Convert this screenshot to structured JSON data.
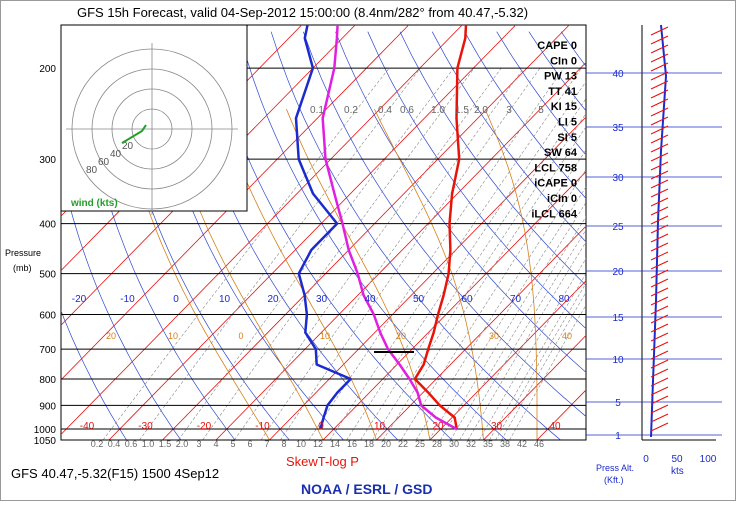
{
  "chart_data": {
    "type": "line",
    "title": "GFS 15h Forecast, valid 04-Sep-2012 15:00:00 (8.4nm/282° from 40.47,-5.32)",
    "footer_left": "GFS 40.47,-5.32(F15) 1500 4Sep12",
    "xlabel": "SkewT-log P",
    "ylabel": "Pressure\n(mb)",
    "credit": "NOAA / ESRL / GSD",
    "pressure_ticks": [
      200,
      300,
      400,
      500,
      600,
      700,
      800,
      900,
      1000,
      1050
    ],
    "temperature_ticks": [
      "-40",
      "-30",
      "-20",
      "-10",
      "0",
      "10",
      "20",
      "30",
      "40"
    ],
    "upper_temp_ticks": [
      "-20",
      "-10",
      "0",
      "10",
      "20",
      "30",
      "40",
      "50",
      "60",
      "70",
      "80"
    ],
    "lower_temp_ticks": [
      "20",
      "10",
      "0",
      "10",
      "20",
      "30",
      "40"
    ],
    "mixing_ratio_labels": [
      "0.1",
      "0.2",
      "0.4",
      "0.6",
      "1.0",
      "1.5",
      "2.0",
      "3",
      "5"
    ],
    "mixing_ratio_lower": [
      "0.2",
      "0.4",
      "0.6",
      "1.0",
      "1.5",
      "2.0",
      "3",
      "4",
      "5",
      "6",
      "7",
      "8",
      "10",
      "12",
      "14",
      "16",
      "18",
      "20",
      "22",
      "25",
      "28",
      "30",
      "32",
      "35",
      "38",
      "42",
      "46"
    ],
    "indices": [
      {
        "label": "CAPE",
        "value": "0"
      },
      {
        "label": "CIn",
        "value": "0"
      },
      {
        "label": "PW",
        "value": "13"
      },
      {
        "label": "TT",
        "value": "41"
      },
      {
        "label": "KI",
        "value": "15"
      },
      {
        "label": "LI",
        "value": "5"
      },
      {
        "label": "SI",
        "value": "5"
      },
      {
        "label": "SW",
        "value": "64"
      },
      {
        "label": "LCL",
        "value": "758"
      },
      {
        "label": "iCAPE",
        "value": "0"
      },
      {
        "label": "iCIn",
        "value": "0"
      },
      {
        "label": "iLCL",
        "value": "664"
      }
    ],
    "hodograph": {
      "rings": [
        "20",
        "40",
        "60",
        "80"
      ],
      "label": "wind (kts)"
    },
    "height_axis": {
      "ticks": [
        "1",
        "5",
        "10",
        "15",
        "20",
        "25",
        "30",
        "35",
        "40"
      ],
      "label": "Press Alt.\n(Kft.)"
    },
    "wind_axis": {
      "ticks": [
        "0",
        "50",
        "100"
      ],
      "unit": "kts"
    },
    "series": [
      {
        "name": "temperature",
        "color": "#e8140a",
        "p": [
          1000,
          950,
          900,
          850,
          800,
          750,
          700,
          650,
          600,
          550,
          500,
          450,
          400,
          350,
          300,
          250,
          200,
          175,
          150
        ],
        "t": [
          23,
          20.5,
          15.5,
          11,
          6,
          5,
          3,
          1,
          -1.5,
          -4,
          -7,
          -11,
          -16,
          -21,
          -26,
          -34,
          -43,
          -47,
          -53
        ]
      },
      {
        "name": "dewpoint",
        "color": "#1b2bcc",
        "p": [
          1000,
          950,
          900,
          850,
          800,
          750,
          700,
          650,
          600,
          550,
          500,
          450,
          400,
          350,
          300,
          250,
          200,
          175,
          150
        ],
        "t": [
          -2.5,
          -4,
          -5.5,
          -6,
          -6,
          -15,
          -18,
          -23,
          -26,
          -30,
          -35,
          -37,
          -37,
          -47,
          -56,
          -64,
          -70,
          -77,
          -82
        ]
      },
      {
        "name": "parcel",
        "color": "#e020e0",
        "p": [
          1000,
          950,
          900,
          850,
          800,
          750,
          700,
          650,
          600,
          550,
          500,
          450,
          400,
          350,
          300,
          250,
          200,
          175,
          150
        ],
        "t": [
          23,
          17,
          12,
          9,
          5,
          0.5,
          -4.5,
          -9,
          -13.5,
          -19,
          -24,
          -30,
          -36,
          -43,
          -51,
          -59,
          -66,
          -71,
          -77
        ]
      }
    ]
  }
}
